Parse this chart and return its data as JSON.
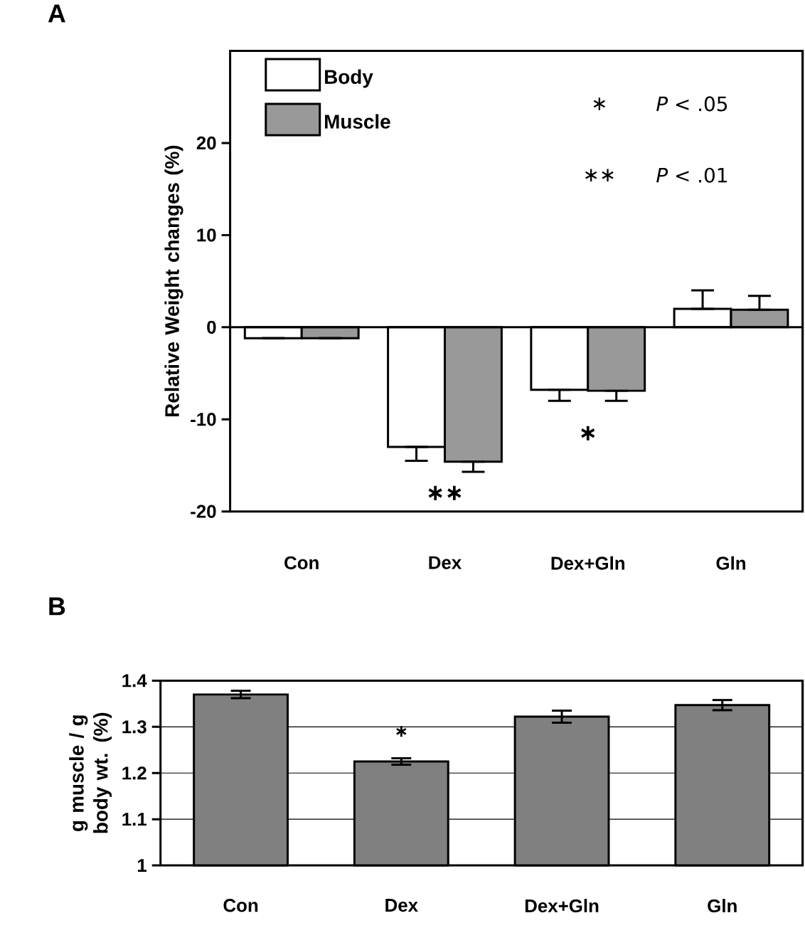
{
  "chart_data": [
    {
      "type": "bar",
      "title": "A",
      "ylabel": "Relative Weight changes (%)",
      "categories": [
        "Con",
        "Dex",
        "Dex+Gln",
        "Gln"
      ],
      "series": [
        {
          "name": "Body",
          "color": "#ffffff",
          "values": [
            -1.2,
            -13,
            -6.8,
            2
          ],
          "errors": [
            [
              -1.2,
              -1.2
            ],
            [
              -14.5,
              -13
            ],
            [
              -8,
              -6.8
            ],
            [
              2,
              4
            ]
          ]
        },
        {
          "name": "Muscle",
          "color": "#999999",
          "values": [
            -1.2,
            -14.6,
            -6.9,
            1.9
          ],
          "errors": [
            [
              -1.2,
              -1.2
            ],
            [
              -15.7,
              -14.6
            ],
            [
              -8,
              -6.9
            ],
            [
              1.9,
              3.4
            ]
          ]
        }
      ],
      "ylim": [
        -20,
        30
      ],
      "yticks": [
        -20,
        -10,
        0,
        10,
        20
      ],
      "legend": "top left",
      "annotations": [
        "∗∗",
        "∗",
        "∗",
        "*P* < .05",
        "∗∗",
        "*P* < .01"
      ]
    },
    {
      "type": "bar",
      "title": "B",
      "ylabel": "g muscle / g body wt. (%)",
      "categories": [
        "Con",
        "Dex",
        "Dex+Gln",
        "Gln"
      ],
      "values": [
        1.37,
        1.225,
        1.322,
        1.347
      ],
      "color": "#808080",
      "errors": [
        0.008,
        0.007,
        0.013,
        0.011
      ],
      "ylim": [
        1,
        1.4
      ],
      "yticks": [
        1,
        1.1,
        1.2,
        1.3,
        1.4
      ],
      "grid": "y",
      "annotations": [
        "∗"
      ]
    }
  ]
}
